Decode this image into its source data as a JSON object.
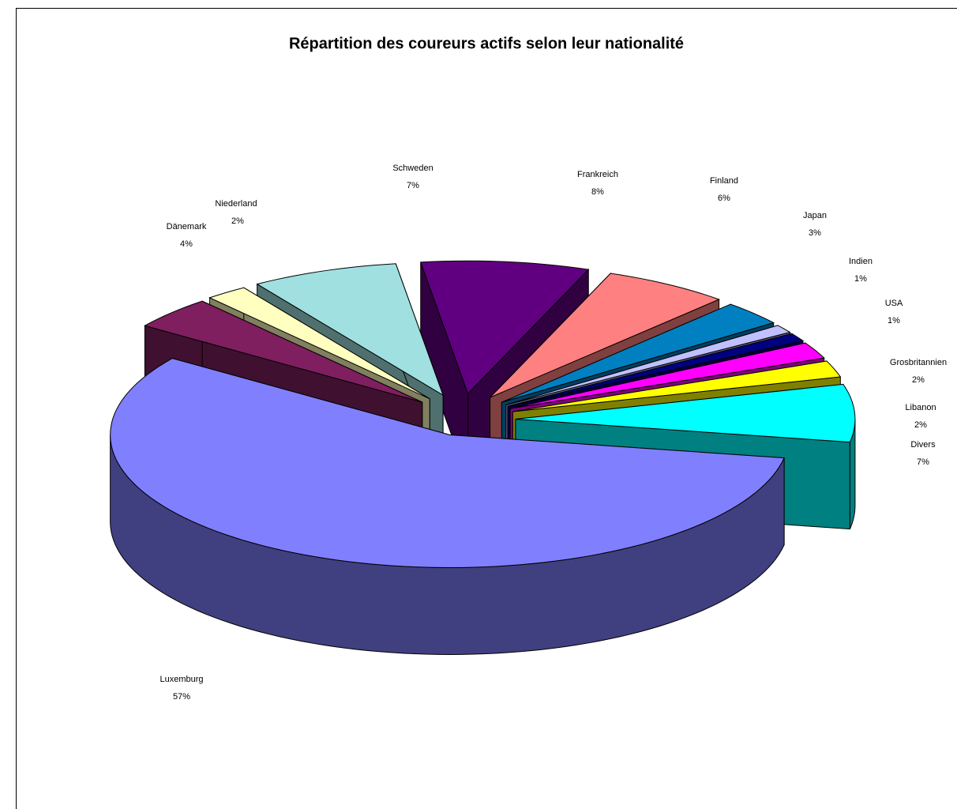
{
  "chart_data": {
    "type": "pie",
    "title": "Répartition des coureurs actifs selon leur nationalité",
    "categories": [
      "Luxemburg",
      "Dänemark",
      "Niederland",
      "Schweden",
      "Frankreich",
      "Finland",
      "Japan",
      "Indien",
      "USA",
      "Grosbritannien",
      "Libanon",
      "Divers"
    ],
    "values": [
      57,
      4,
      2,
      7,
      8,
      6,
      3,
      1,
      1,
      2,
      2,
      7
    ],
    "value_labels": [
      "57%",
      "4%",
      "2%",
      "7%",
      "8%",
      "6%",
      "3%",
      "1%",
      "1%",
      "2%",
      "2%",
      "7%"
    ],
    "colors": [
      "#8080ff",
      "#7f1f5f",
      "#ffffc0",
      "#a0e0e0",
      "#600080",
      "#ff8080",
      "#0080c0",
      "#c0c0ff",
      "#000080",
      "#ff00ff",
      "#ffff00",
      "#00ffff"
    ]
  }
}
